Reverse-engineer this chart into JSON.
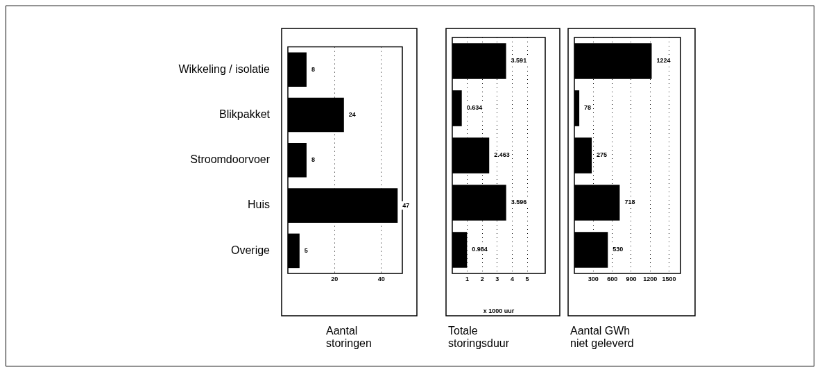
{
  "chart_data": [
    {
      "type": "bar",
      "orientation": "horizontal",
      "title": "Aantal storingen",
      "categories": [
        "Wikkeling / isolatie",
        "Blikpakket",
        "Stroomdoorvoer",
        "Huis",
        "Overige"
      ],
      "values": [
        8,
        24,
        8,
        47,
        5
      ],
      "color": "#000000",
      "xlim": [
        0,
        49
      ],
      "xticks": [
        20,
        40
      ],
      "grid": "x",
      "data_labels": true
    },
    {
      "type": "bar",
      "orientation": "horizontal",
      "title": "Totale storingsduur",
      "xlabel": "x 1000 uur",
      "categories": [
        null,
        null,
        null,
        null,
        null
      ],
      "values": [
        3.591,
        0.634,
        2.463,
        3.596,
        0.984
      ],
      "color": "#000000",
      "xlim": [
        0,
        6.2
      ],
      "xticks": [
        1,
        2,
        3,
        4,
        5
      ],
      "grid": "x",
      "data_labels": true,
      "tick_labels": "x"
    },
    {
      "type": "bar",
      "orientation": "horizontal",
      "title": "Aantal GWh niet geleverd",
      "categories": [
        null,
        null,
        null,
        null,
        null
      ],
      "values": [
        1224,
        78,
        275,
        718,
        530
      ],
      "color": "#000000",
      "xlim": [
        0,
        1680
      ],
      "xticks": [
        300,
        600,
        900,
        1200,
        1500
      ],
      "grid": "x",
      "data_labels": true,
      "tick_labels": "x"
    }
  ]
}
